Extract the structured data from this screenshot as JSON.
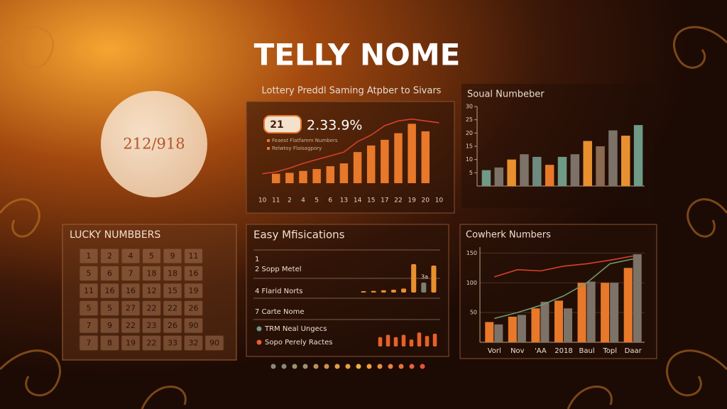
{
  "title": "TELLY NOME",
  "circle_text": "212/918",
  "lucky": {
    "title": "LUCKY NUMBBERS",
    "rows": [
      [
        1,
        2,
        4,
        5,
        9,
        11
      ],
      [
        5,
        6,
        7,
        18,
        18,
        16
      ],
      [
        11,
        16,
        16,
        12,
        15,
        19
      ],
      [
        5,
        5,
        27,
        22,
        22,
        26
      ],
      [
        7,
        9,
        22,
        23,
        26,
        90
      ],
      [
        7,
        8,
        19,
        22,
        33,
        32,
        90
      ]
    ]
  },
  "chart_data": [
    {
      "type": "bar",
      "title": "Lottery Preddl Saming Atpber to Sivars",
      "badge": "21",
      "headline": "2.33.9%",
      "notes": [
        "Feaest Flatfamm Numbers",
        "Relwtoy Flaisagpory"
      ],
      "categories": [
        "10",
        "11",
        "2",
        "4",
        "5",
        "6",
        "13",
        "14",
        "15",
        "17",
        "22",
        "19",
        "20",
        "10"
      ],
      "ylim": [
        0,
        7
      ],
      "series": [
        {
          "kind": "bar",
          "color": "#e8782a",
          "values": [
            null,
            1,
            1.1,
            1.3,
            1.5,
            1.8,
            2.1,
            3.3,
            4,
            4.6,
            5.3,
            6.3,
            5.5,
            null
          ]
        },
        {
          "kind": "line",
          "color": "#d8402a",
          "values": [
            1,
            1.2,
            1.6,
            2.1,
            2.5,
            2.9,
            3.3,
            4.4,
            5.1,
            6.1,
            6.6,
            6.8,
            6.6,
            6.4
          ]
        }
      ]
    },
    {
      "type": "bar",
      "title": "Soual Numbeber",
      "ylim": [
        0,
        30
      ],
      "yticks": [
        5,
        10,
        15,
        20,
        25,
        30
      ],
      "values": [
        6,
        7,
        10,
        12,
        11,
        8,
        11,
        12,
        17,
        15,
        21,
        19,
        23
      ],
      "colors": [
        "#6f9a88",
        "#7c7268",
        "#e8902f",
        "#7c7268",
        "#6f8a80",
        "#e8782a",
        "#6f9a88",
        "#7c7268",
        "#e8902f",
        "#8a6a50",
        "#7c7268",
        "#e8902f",
        "#6f9a88"
      ]
    },
    {
      "type": "minibars",
      "title": "Easy Mfisications",
      "items": [
        "1",
        "2 Sopp Metel",
        "4 Flarid Norts",
        "7 Carte Nome"
      ],
      "legend": [
        {
          "name": "TRM Neal Ungecs",
          "color": "#6f9a88"
        },
        {
          "name": "Sopo Perely Ractes",
          "color": "#e8602a"
        }
      ],
      "annotation": "3a",
      "ylim": [
        0,
        10
      ],
      "series": [
        {
          "color": "#e8902f",
          "values": [
            0.5,
            0.6,
            0.8,
            1,
            1.4,
            10,
            3.5,
            9.5
          ]
        },
        {
          "color": "#e8602a",
          "values": [
            4,
            5,
            4,
            5,
            3,
            6,
            4.5,
            5.5
          ]
        }
      ]
    },
    {
      "type": "combo",
      "title": "Cowherk Numbers",
      "ylim": [
        0,
        160
      ],
      "yticks": [
        50,
        100,
        150
      ],
      "categories": [
        "Vorl",
        "Nov",
        "'AA",
        "2018",
        "Baul",
        "Topl",
        "Daar"
      ],
      "series": [
        {
          "kind": "bar",
          "color": "#e8782a",
          "values": [
            34,
            43,
            57,
            70,
            100,
            100,
            125
          ]
        },
        {
          "kind": "bar",
          "color": "#7c7268",
          "values": [
            30,
            46,
            68,
            57,
            102,
            100,
            148
          ]
        },
        {
          "kind": "line",
          "color": "#d8402a",
          "values": [
            110,
            122,
            120,
            128,
            132,
            138,
            145
          ]
        },
        {
          "kind": "line",
          "color": "#6f9a70",
          "values": [
            40,
            50,
            62,
            78,
            100,
            132,
            140
          ]
        }
      ]
    }
  ]
}
